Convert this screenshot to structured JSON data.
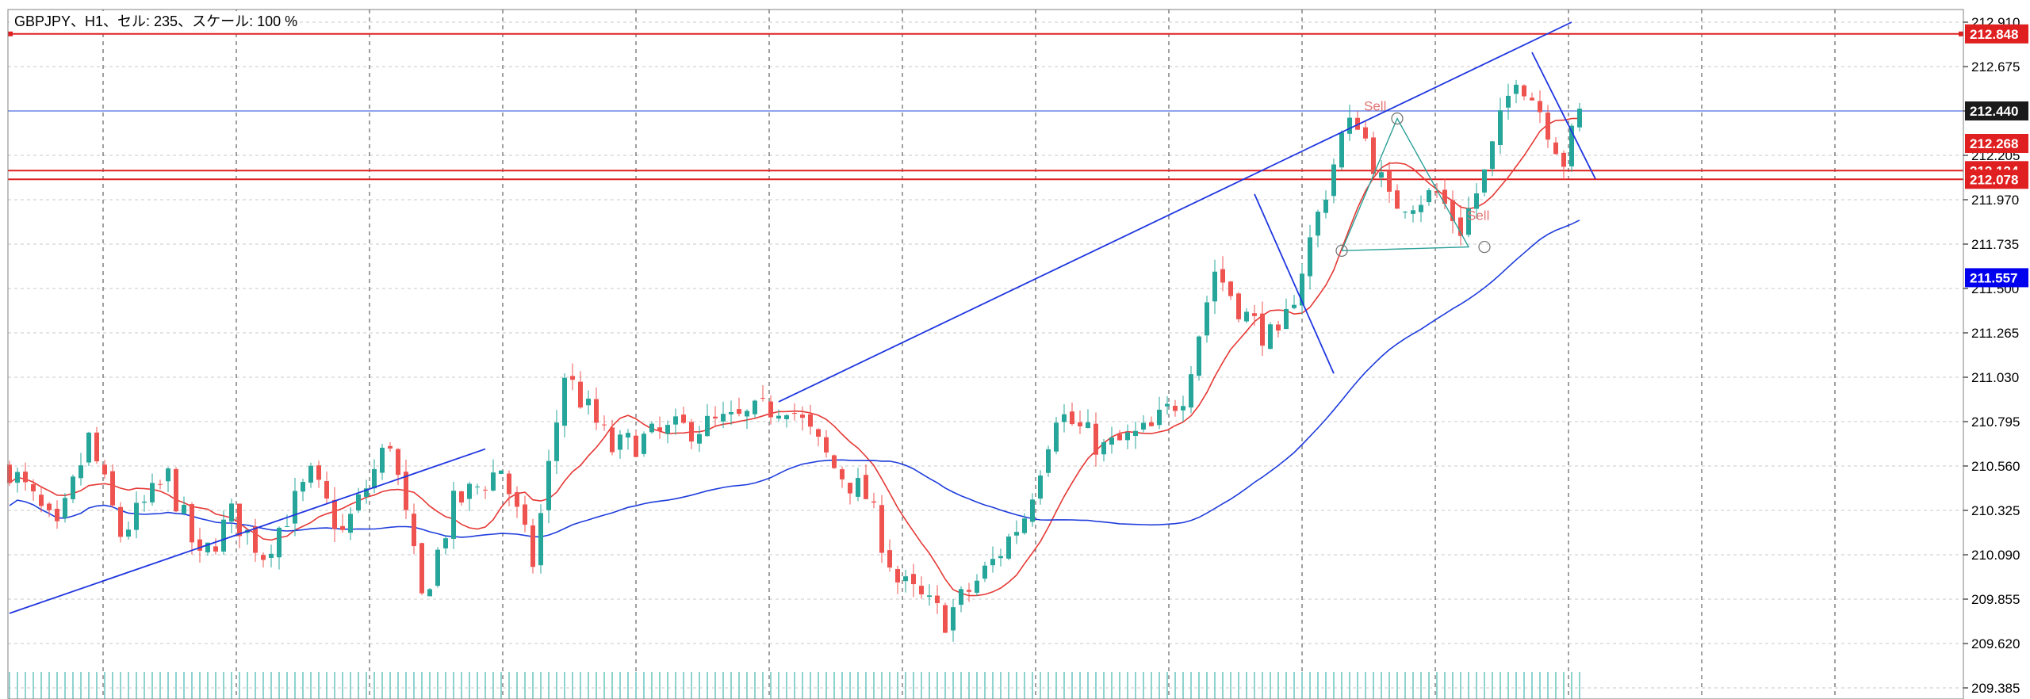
{
  "window": {
    "title": "GBPJPY、H1、セル: 235、スケール: 100 %"
  },
  "colors": {
    "background": "#ffffff",
    "bull": "#26a69a",
    "bear": "#ef5350",
    "grid": "#c8c8c8",
    "vgrid": "#404040",
    "ma_fast": "#e53935",
    "ma_slow": "#1e3cdc",
    "trendline": "#1f36e0",
    "level": "#e02020",
    "bid_line": "#4a6ce0",
    "pattern": "#2aa198",
    "signal": "#e57373",
    "volume": "#8fd3cf"
  },
  "price_axis": {
    "min": 209.385,
    "max": 212.91,
    "ticks": [
      "212.910",
      "212.675",
      "212.440",
      "212.205",
      "211.970",
      "211.735",
      "211.500",
      "211.265",
      "211.030",
      "210.795",
      "210.560",
      "210.325",
      "210.090",
      "209.855",
      "209.620",
      "209.385"
    ]
  },
  "price_badges": [
    {
      "label": "212.848",
      "price": 212.848,
      "bg": "#e02020",
      "fg": "#ffffff"
    },
    {
      "label": "212.440",
      "price": 212.44,
      "bg": "#1a1a1a",
      "fg": "#ffffff"
    },
    {
      "label": "212.268",
      "price": 212.268,
      "bg": "#e02020",
      "fg": "#ffffff"
    },
    {
      "label": "212.124",
      "price": 212.124,
      "bg": "#e02020",
      "fg": "#ffffff"
    },
    {
      "label": "212.078",
      "price": 212.078,
      "bg": "#e02020",
      "fg": "#ffffff"
    },
    {
      "label": "211.557",
      "price": 211.557,
      "bg": "#0000ee",
      "fg": "#ffffff"
    }
  ],
  "horizontal_levels": [
    212.848,
    212.124,
    212.078
  ],
  "bid_level": 212.44,
  "signals": [
    {
      "label": "Sell",
      "bar": 170,
      "price": 212.4
    },
    {
      "label": "Sell",
      "bar": 183,
      "price": 211.82
    }
  ],
  "chart_data": {
    "type": "candlestick",
    "symbol": "GBPJPY",
    "timeframe": "H1",
    "bars_visible": 235,
    "ylim": [
      209.385,
      212.91
    ],
    "anchors": [
      [
        0,
        210.55
      ],
      [
        6,
        210.2
      ],
      [
        10,
        210.7
      ],
      [
        14,
        210.2
      ],
      [
        20,
        210.5
      ],
      [
        24,
        210.05
      ],
      [
        28,
        210.3
      ],
      [
        32,
        210.1
      ],
      [
        38,
        210.5
      ],
      [
        42,
        210.2
      ],
      [
        48,
        210.7
      ],
      [
        52,
        209.85
      ],
      [
        56,
        210.35
      ],
      [
        62,
        210.55
      ],
      [
        66,
        210.05
      ],
      [
        70,
        211.05
      ],
      [
        76,
        210.65
      ],
      [
        84,
        210.75
      ],
      [
        92,
        210.8
      ],
      [
        98,
        210.9
      ],
      [
        104,
        210.55
      ],
      [
        108,
        210.4
      ],
      [
        112,
        209.95
      ],
      [
        118,
        209.75
      ],
      [
        124,
        210.05
      ],
      [
        128,
        210.3
      ],
      [
        132,
        210.85
      ],
      [
        138,
        210.65
      ],
      [
        144,
        210.75
      ],
      [
        148,
        210.95
      ],
      [
        152,
        211.6
      ],
      [
        156,
        211.35
      ],
      [
        160,
        211.2
      ],
      [
        164,
        211.75
      ],
      [
        168,
        212.3
      ],
      [
        170,
        212.4
      ],
      [
        174,
        211.95
      ],
      [
        180,
        212.0
      ],
      [
        183,
        211.82
      ],
      [
        186,
        212.1
      ],
      [
        190,
        212.65
      ],
      [
        193,
        212.45
      ],
      [
        196,
        212.18
      ],
      [
        198,
        212.42
      ]
    ]
  }
}
